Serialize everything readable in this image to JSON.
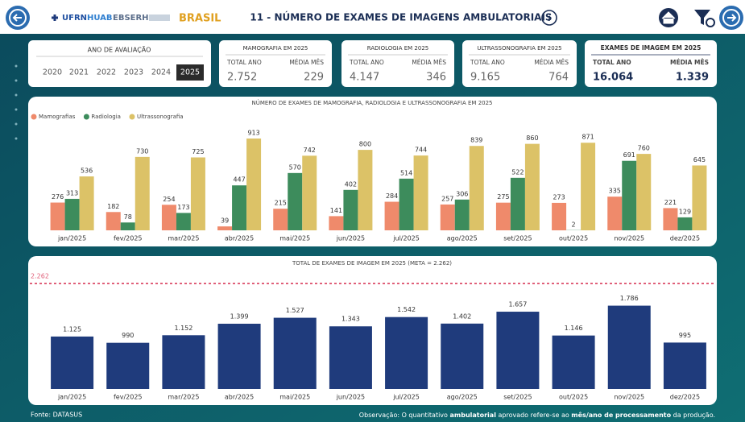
{
  "header": {
    "title": "11 - NÚMERO DE EXAMES DE IMAGENS AMBULATORIAIS",
    "logos": [
      "UFRN",
      "HUAB",
      "EBSERH",
      "BRASIL"
    ]
  },
  "year_filter": {
    "title": "ANO DE AVALIAÇÃO",
    "years": [
      "2020",
      "2021",
      "2022",
      "2023",
      "2024",
      "2025"
    ],
    "selected": "2025"
  },
  "kpis": [
    {
      "title": "MAMOGRAFIA EM 2025",
      "labels": [
        "TOTAL ANO",
        "MÉDIA MÊS"
      ],
      "values": [
        "2.752",
        "229"
      ],
      "highlight": false
    },
    {
      "title": "RADIOLOGIA EM 2025",
      "labels": [
        "TOTAL ANO",
        "MÉDIA MÊS"
      ],
      "values": [
        "4.147",
        "346"
      ],
      "highlight": false
    },
    {
      "title": "ULTRASSONOGRAFIA EM 2025",
      "labels": [
        "TOTAL ANO",
        "MÉDIA MÊS"
      ],
      "values": [
        "9.165",
        "764"
      ],
      "highlight": false
    },
    {
      "title": "EXAMES DE IMAGEM EM 2025",
      "labels": [
        "TOTAL ANO",
        "MÉDIA MÊS"
      ],
      "values": [
        "16.064",
        "1.339"
      ],
      "highlight": true
    }
  ],
  "chart_data": [
    {
      "type": "bar",
      "title": "NÚMERO DE EXAMES DE MAMOGRAFIA, RADIOLOGIA E ULTRASSONOGRAFIA EM 2025",
      "categories": [
        "jan/2025",
        "fev/2025",
        "mar/2025",
        "abr/2025",
        "mai/2025",
        "jun/2025",
        "jul/2025",
        "ago/2025",
        "set/2025",
        "out/2025",
        "nov/2025",
        "dez/2025"
      ],
      "series": [
        {
          "name": "Mamografias",
          "color": "#ef8a6b",
          "values": [
            276,
            182,
            254,
            39,
            215,
            141,
            284,
            257,
            275,
            273,
            335,
            221
          ]
        },
        {
          "name": "Radiologia",
          "color": "#3d8c5c",
          "values": [
            313,
            78,
            173,
            447,
            570,
            402,
            514,
            306,
            522,
            2,
            691,
            129
          ]
        },
        {
          "name": "Ultrassonografia",
          "color": "#dcc267",
          "values": [
            536,
            730,
            725,
            913,
            742,
            800,
            744,
            839,
            860,
            871,
            760,
            645
          ]
        }
      ],
      "legend": "top-left"
    },
    {
      "type": "bar",
      "title": "TOTAL DE EXAMES DE IMAGEM EM 2025 (META = 2.262)",
      "categories": [
        "jan/2025",
        "fev/2025",
        "mar/2025",
        "abr/2025",
        "mai/2025",
        "jun/2025",
        "jul/2025",
        "ago/2025",
        "set/2025",
        "out/2025",
        "nov/2025",
        "dez/2025"
      ],
      "values": [
        1125,
        990,
        1152,
        1399,
        1527,
        1343,
        1542,
        1402,
        1657,
        1146,
        1786,
        995
      ],
      "value_labels": [
        "1.125",
        "990",
        "1.152",
        "1.399",
        "1.527",
        "1.343",
        "1.542",
        "1.402",
        "1.657",
        "1.146",
        "1.786",
        "995"
      ],
      "color": "#1f3b7c",
      "target": {
        "value": 2262,
        "label": "2.262",
        "color": "#e0607a"
      }
    }
  ],
  "footer": {
    "source": "Fonte: DATASUS",
    "note": [
      "Observação: O quantitativo ",
      "ambulatorial",
      " aprovado refere-se ao ",
      "mês/ano de processamento",
      " da produção."
    ]
  }
}
